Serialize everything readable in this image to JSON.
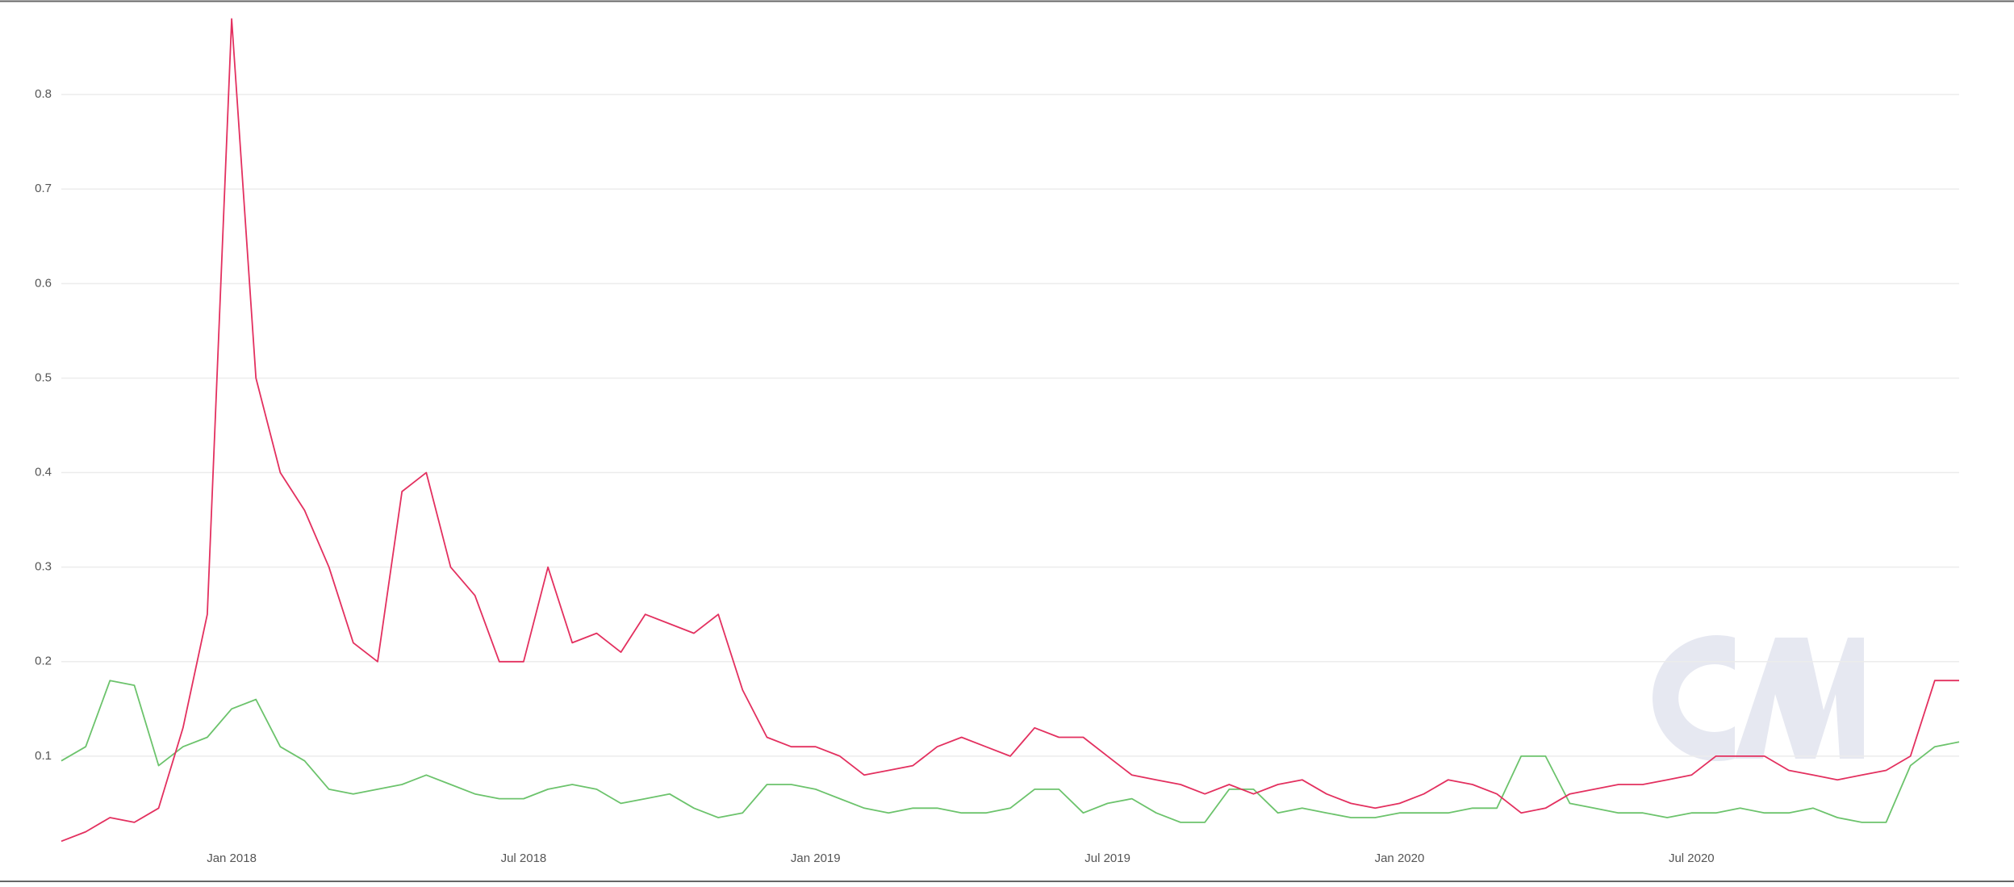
{
  "chart_data": {
    "type": "line",
    "categories": [
      null,
      null,
      null,
      null,
      null,
      null,
      null,
      "Jan 2018",
      null,
      null,
      null,
      null,
      null,
      null,
      null,
      null,
      null,
      null,
      null,
      "Jul 2018",
      null,
      null,
      null,
      null,
      null,
      null,
      null,
      null,
      null,
      null,
      null,
      "Jan 2019",
      null,
      null,
      null,
      null,
      null,
      null,
      null,
      null,
      null,
      null,
      null,
      "Jul 2019",
      null,
      null,
      null,
      null,
      null,
      null,
      null,
      null,
      null,
      null,
      null,
      "Jan 2020",
      null,
      null,
      null,
      null,
      null,
      null,
      null,
      null,
      null,
      null,
      null,
      "Jul 2020",
      null,
      null,
      null,
      null,
      null,
      null,
      null,
      null,
      null,
      null,
      null
    ],
    "series": [
      {
        "color": "#e3305f",
        "values": [
          0.01,
          0.02,
          0.035,
          0.03,
          0.045,
          0.13,
          0.25,
          0.88,
          0.5,
          0.4,
          0.36,
          0.3,
          0.22,
          0.2,
          0.38,
          0.4,
          0.3,
          0.27,
          0.2,
          0.2,
          0.3,
          0.22,
          0.23,
          0.21,
          0.25,
          0.24,
          0.23,
          0.25,
          0.17,
          0.12,
          0.11,
          0.11,
          0.1,
          0.08,
          0.085,
          0.09,
          0.11,
          0.12,
          0.11,
          0.1,
          0.13,
          0.12,
          0.12,
          0.1,
          0.08,
          0.075,
          0.07,
          0.06,
          0.07,
          0.06,
          0.07,
          0.075,
          0.06,
          0.05,
          0.045,
          0.05,
          0.06,
          0.075,
          0.07,
          0.06,
          0.04,
          0.045,
          0.06,
          0.065,
          0.07,
          0.07,
          0.075,
          0.08,
          0.1,
          0.1,
          0.1,
          0.085,
          0.08,
          0.075,
          0.08,
          0.085,
          0.1,
          0.18,
          0.18
        ]
      },
      {
        "color": "#6cc36c",
        "values": [
          0.095,
          0.11,
          0.18,
          0.175,
          0.09,
          0.11,
          0.12,
          0.15,
          0.16,
          0.11,
          0.095,
          0.065,
          0.06,
          0.065,
          0.07,
          0.08,
          0.07,
          0.06,
          0.055,
          0.055,
          0.065,
          0.07,
          0.065,
          0.05,
          0.055,
          0.06,
          0.045,
          0.035,
          0.04,
          0.07,
          0.07,
          0.065,
          0.055,
          0.045,
          0.04,
          0.045,
          0.045,
          0.04,
          0.04,
          0.045,
          0.065,
          0.065,
          0.04,
          0.05,
          0.055,
          0.04,
          0.03,
          0.03,
          0.065,
          0.065,
          0.04,
          0.045,
          0.04,
          0.035,
          0.035,
          0.04,
          0.04,
          0.04,
          0.045,
          0.045,
          0.1,
          0.1,
          0.05,
          0.045,
          0.04,
          0.04,
          0.035,
          0.04,
          0.04,
          0.045,
          0.04,
          0.04,
          0.045,
          0.035,
          0.03,
          0.03,
          0.09,
          0.11,
          0.115
        ]
      }
    ],
    "ylim": [
      0,
      0.9
    ],
    "yticks": [
      0.1,
      0.2,
      0.3,
      0.4,
      0.5,
      0.6,
      0.7,
      0.8
    ],
    "grid": true
  }
}
